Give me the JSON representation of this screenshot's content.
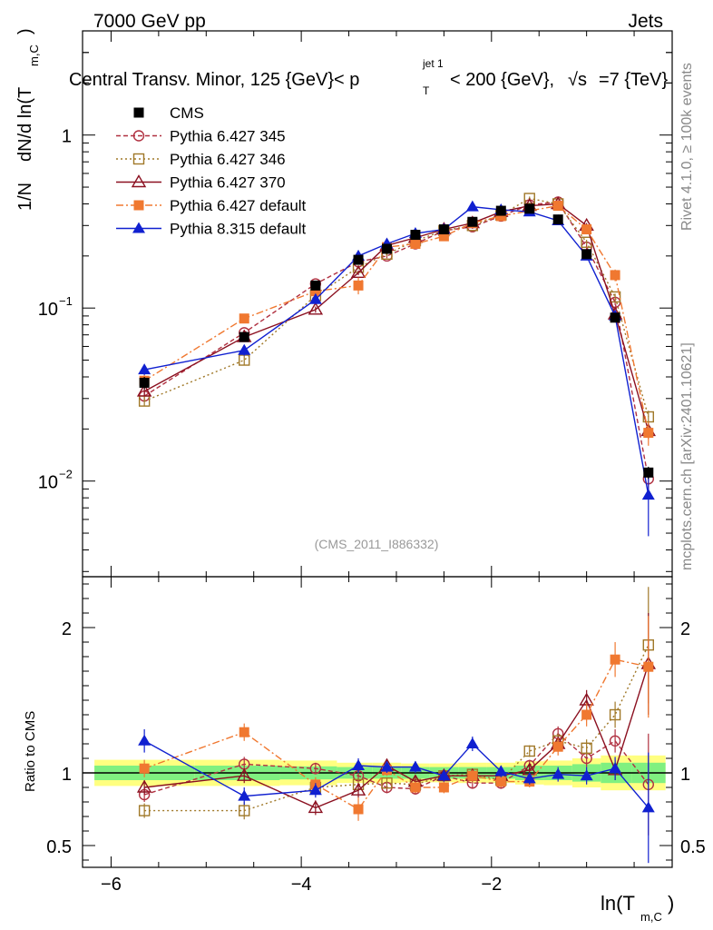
{
  "header": {
    "left": "7000 GeV pp",
    "right": "Jets"
  },
  "chart_data": {
    "type": "scatter",
    "title": {
      "prefix": "Central Transv. Minor, 125 {GeV}< p",
      "sup": "jet 1",
      "sub": "T",
      "middle": " < 200 {GeV}, ",
      "sqrt": "√s",
      "suffix": "=7 {TeV}"
    },
    "analysis": "(CMS_2011_I886332)",
    "side_label_top": "Rivet 4.1.0, ≥ 100k events",
    "side_label_bottom": "mcplots.cern.ch [arXiv:2401.10621]",
    "ylabel_main": {
      "a": "1/N",
      "b": "dN/d ln(T",
      "sub": "m,C",
      "c": ")"
    },
    "ylabel_ratio": "Ratio to CMS",
    "xlabel": {
      "a": "ln(T",
      "sub": "m,C",
      "c": ")"
    },
    "xlim": [
      -6.3,
      -0.1
    ],
    "ylim": [
      0.0028,
      4.0
    ],
    "ratio_ylim": [
      0.35,
      2.35
    ],
    "x_ticks": [
      "−6",
      "−4",
      "−2"
    ],
    "y_ticks": [
      {
        "value": 1,
        "label": "1"
      },
      {
        "value": 0.1,
        "label": "10",
        "exp": "−1"
      },
      {
        "value": 0.01,
        "label": "10",
        "exp": "−2"
      }
    ],
    "ratio_ticks": [
      {
        "value": 2,
        "label": "2"
      },
      {
        "value": 1,
        "label": "1"
      },
      {
        "value": 0.5,
        "label": "0.5"
      }
    ],
    "x": [
      -5.65,
      -4.6,
      -3.85,
      -3.4,
      -3.1,
      -2.8,
      -2.5,
      -2.2,
      -1.9,
      -1.6,
      -1.3,
      -1.0,
      -0.7,
      -0.35
    ],
    "data": {
      "name": "CMS",
      "color": "#000000",
      "values": [
        0.037,
        0.068,
        0.135,
        0.19,
        0.22,
        0.265,
        0.285,
        0.315,
        0.365,
        0.375,
        0.325,
        0.205,
        0.088,
        0.0112
      ],
      "errors": [
        0.003,
        0.004,
        0.006,
        0.008,
        0.009,
        0.009,
        0.01,
        0.011,
        0.012,
        0.012,
        0.012,
        0.009,
        0.004,
        0.0009
      ]
    },
    "bands": {
      "green": [
        0.05,
        0.05,
        0.045,
        0.04,
        0.04,
        0.04,
        0.04,
        0.04,
        0.04,
        0.05,
        0.05,
        0.06,
        0.07,
        0.07
      ],
      "yellow": [
        0.09,
        0.09,
        0.085,
        0.07,
        0.07,
        0.065,
        0.065,
        0.07,
        0.07,
        0.08,
        0.085,
        0.1,
        0.12,
        0.12
      ]
    },
    "series": [
      {
        "name": "Pythia 6.427 345",
        "color": "#b03040",
        "dash": "5,3",
        "marker": "circle-open",
        "values": [
          0.031,
          0.072,
          0.138,
          0.185,
          0.2,
          0.235,
          0.28,
          0.295,
          0.34,
          0.395,
          0.41,
          0.225,
          0.108,
          0.0103
        ],
        "errors": [
          0.002,
          0.003,
          0.004,
          0.005,
          0.006,
          0.007,
          0.008,
          0.008,
          0.009,
          0.01,
          0.011,
          0.008,
          0.004,
          0.0015
        ],
        "ratio": [
          0.85,
          1.06,
          1.03,
          0.98,
          0.9,
          0.89,
          0.98,
          0.93,
          0.93,
          1.05,
          1.27,
          1.1,
          1.22,
          0.92
        ],
        "ratio_err": [
          0.05,
          0.05,
          0.04,
          0.04,
          0.04,
          0.04,
          0.04,
          0.04,
          0.04,
          0.04,
          0.05,
          0.06,
          0.08,
          0.35
        ]
      },
      {
        "name": "Pythia 6.427 346",
        "color": "#a07828",
        "dash": "2,3",
        "marker": "square-open",
        "values": [
          0.029,
          0.05,
          0.118,
          0.172,
          0.205,
          0.245,
          0.28,
          0.3,
          0.345,
          0.43,
          0.4,
          0.24,
          0.116,
          0.0235
        ],
        "errors": [
          0.002,
          0.003,
          0.004,
          0.005,
          0.006,
          0.007,
          0.008,
          0.008,
          0.009,
          0.011,
          0.011,
          0.008,
          0.005,
          0.002
        ],
        "ratio": [
          0.74,
          0.74,
          0.9,
          0.92,
          0.93,
          0.92,
          0.98,
          0.99,
          0.95,
          1.15,
          1.22,
          1.17,
          1.4,
          1.88
        ],
        "ratio_err": [
          0.05,
          0.06,
          0.04,
          0.04,
          0.04,
          0.04,
          0.04,
          0.04,
          0.04,
          0.04,
          0.05,
          0.06,
          0.09,
          0.4
        ]
      },
      {
        "name": "Pythia 6.427 370",
        "color": "#8b1020",
        "dash": "",
        "marker": "triangle-open",
        "values": [
          0.033,
          0.068,
          0.098,
          0.16,
          0.23,
          0.255,
          0.285,
          0.31,
          0.36,
          0.39,
          0.4,
          0.3,
          0.092,
          0.0195
        ],
        "errors": [
          0.002,
          0.003,
          0.004,
          0.005,
          0.007,
          0.007,
          0.008,
          0.008,
          0.009,
          0.01,
          0.011,
          0.01,
          0.004,
          0.002
        ],
        "ratio": [
          0.9,
          0.98,
          0.76,
          0.88,
          1.05,
          0.94,
          0.98,
          0.98,
          0.98,
          1.02,
          1.2,
          1.5,
          1.02,
          1.75
        ],
        "ratio_err": [
          0.05,
          0.05,
          0.05,
          0.05,
          0.04,
          0.04,
          0.04,
          0.04,
          0.04,
          0.04,
          0.05,
          0.07,
          0.07,
          0.35
        ]
      },
      {
        "name": "Pythia 6.427 default",
        "color": "#f07830",
        "dash": "8,3,2,3",
        "marker": "square-filled",
        "values": [
          0.038,
          0.087,
          0.125,
          0.135,
          0.225,
          0.235,
          0.26,
          0.31,
          0.34,
          0.365,
          0.39,
          0.285,
          0.155,
          0.019
        ],
        "errors": [
          0.003,
          0.005,
          0.006,
          0.015,
          0.007,
          0.008,
          0.009,
          0.009,
          0.01,
          0.011,
          0.012,
          0.012,
          0.012,
          0.003
        ],
        "ratio": [
          1.03,
          1.28,
          0.92,
          0.75,
          1.02,
          0.9,
          0.9,
          0.98,
          0.94,
          0.94,
          1.18,
          1.4,
          1.78,
          1.73
        ],
        "ratio_err": [
          0.06,
          0.06,
          0.05,
          0.08,
          0.04,
          0.04,
          0.04,
          0.04,
          0.04,
          0.04,
          0.06,
          0.08,
          0.12,
          0.35
        ]
      },
      {
        "name": "Pythia 8.315 default",
        "color": "#1020d0",
        "dash": "",
        "marker": "triangle-filled",
        "values": [
          0.044,
          0.057,
          0.112,
          0.2,
          0.235,
          0.27,
          0.285,
          0.385,
          0.37,
          0.36,
          0.32,
          0.2,
          0.09,
          0.0083
        ],
        "errors": [
          0.003,
          0.004,
          0.005,
          0.007,
          0.008,
          0.009,
          0.009,
          0.012,
          0.011,
          0.011,
          0.011,
          0.008,
          0.005,
          0.0035
        ],
        "ratio": [
          1.22,
          0.84,
          0.88,
          1.05,
          1.04,
          1.04,
          0.98,
          1.2,
          1.01,
          0.96,
          0.99,
          0.98,
          1.03,
          0.76
        ],
        "ratio_err": [
          0.08,
          0.06,
          0.05,
          0.05,
          0.04,
          0.04,
          0.04,
          0.05,
          0.04,
          0.04,
          0.05,
          0.06,
          0.08,
          0.38
        ]
      }
    ]
  }
}
